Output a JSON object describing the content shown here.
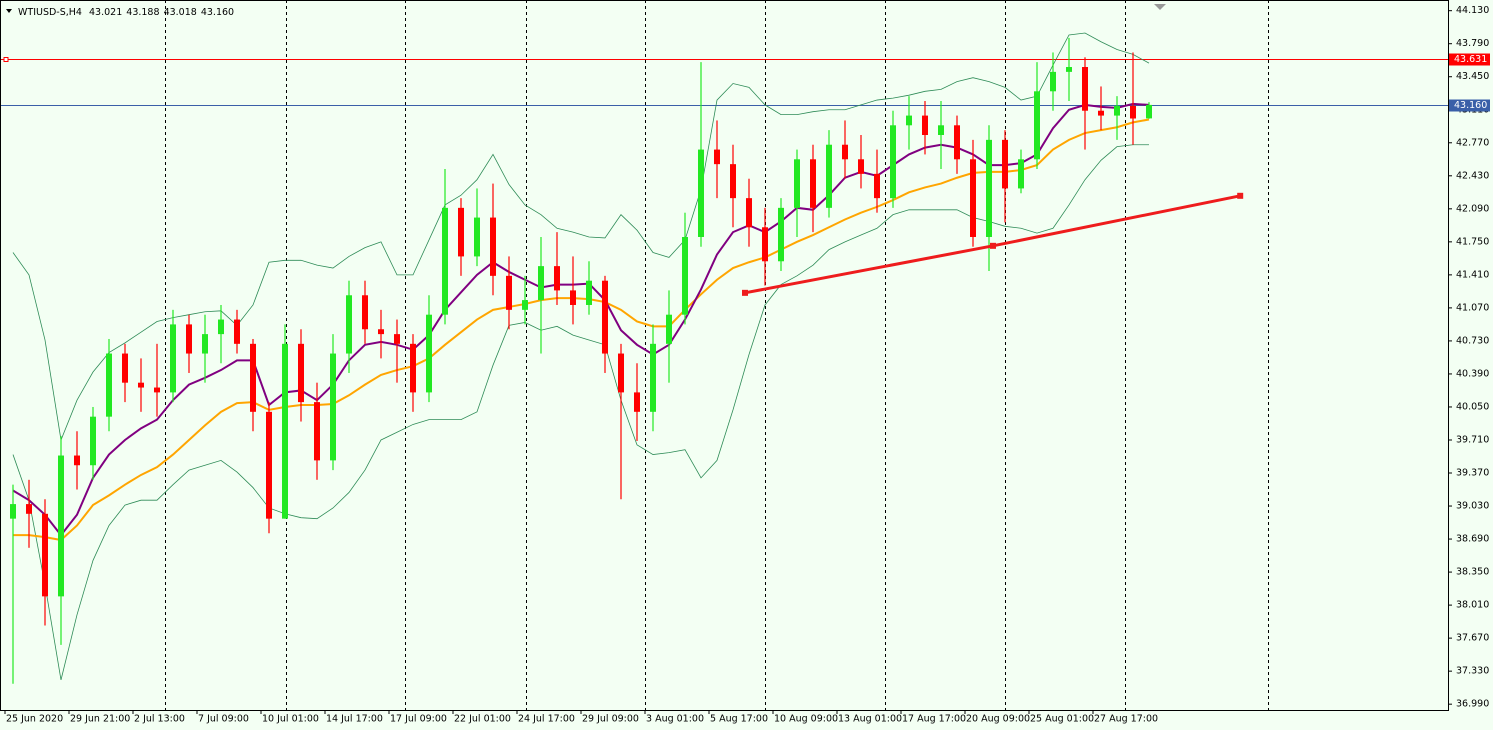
{
  "chart_data": {
    "type": "candlestick",
    "header": {
      "symbol": "WTIUSD-S,H4",
      "values": [
        "43.021",
        "43.188",
        "43.018",
        "43.160"
      ]
    },
    "background": "#f3fff3",
    "up_color": "#22e822",
    "down_color": "#ff0000",
    "categories": [
      "25 Jun 2020",
      null,
      null,
      null,
      "29 Jun 21:00",
      null,
      null,
      null,
      "2 Jul 13:00",
      null,
      null,
      null,
      "7 Jul 09:00",
      null,
      null,
      null,
      "10 Jul 01:00",
      null,
      null,
      null,
      "14 Jul 17:00",
      null,
      null,
      null,
      "17 Jul 09:00",
      null,
      null,
      null,
      "22 Jul 01:00",
      null,
      null,
      null,
      "24 Jul 17:00",
      null,
      null,
      null,
      "29 Jul 09:00",
      null,
      null,
      null,
      "3 Aug 01:00",
      null,
      null,
      null,
      "5 Aug 17:00",
      null,
      null,
      null,
      "10 Aug 09:00",
      null,
      null,
      null,
      "13 Aug 01:00",
      null,
      null,
      null,
      "17 Aug 17:00",
      null,
      null,
      null,
      "20 Aug 09:00",
      null,
      null,
      null,
      "25 Aug 01:00",
      null,
      null,
      null,
      "27 Aug 17:00",
      null,
      null,
      null
    ],
    "open": [
      38.9,
      39.05,
      38.95,
      38.1,
      39.55,
      39.45,
      39.95,
      40.6,
      40.3,
      40.25,
      40.2,
      40.9,
      40.6,
      40.8,
      40.95,
      40.7,
      40.0,
      38.9,
      40.7,
      40.1,
      39.5,
      40.6,
      41.2,
      40.85,
      40.8,
      40.7,
      40.2,
      41.0,
      42.1,
      41.6,
      42.0,
      41.4,
      41.05,
      41.15,
      41.5,
      41.25,
      41.1,
      41.35,
      40.6,
      40.2,
      40.0,
      40.7,
      41.0,
      41.8,
      42.7,
      42.55,
      42.2,
      41.9,
      41.55,
      42.1,
      42.6,
      42.1,
      42.75,
      42.6,
      42.45,
      42.2,
      42.95,
      43.05,
      42.85,
      42.95,
      42.6,
      41.8,
      42.8,
      42.3,
      42.6,
      43.3,
      43.5,
      43.55,
      43.1,
      43.05,
      43.15,
      43.021
    ],
    "high": [
      39.25,
      39.3,
      39.1,
      39.75,
      39.8,
      40.05,
      40.75,
      40.7,
      40.55,
      40.7,
      41.05,
      41.0,
      41.0,
      41.1,
      41.05,
      40.75,
      40.1,
      40.9,
      40.85,
      40.3,
      40.8,
      41.35,
      41.35,
      41.05,
      40.95,
      40.8,
      41.2,
      42.5,
      42.2,
      42.3,
      42.35,
      41.6,
      41.4,
      41.8,
      41.85,
      41.6,
      41.55,
      41.4,
      40.7,
      40.5,
      40.9,
      41.25,
      42.05,
      43.6,
      43.0,
      42.75,
      42.4,
      42.1,
      42.2,
      42.7,
      42.75,
      42.9,
      43.0,
      42.85,
      42.7,
      43.1,
      43.25,
      43.2,
      43.2,
      43.05,
      42.8,
      42.95,
      42.9,
      42.7,
      43.6,
      43.7,
      43.85,
      43.65,
      43.35,
      43.25,
      43.7,
      43.188
    ],
    "low": [
      37.2,
      38.6,
      37.8,
      37.6,
      39.2,
      39.3,
      39.8,
      40.1,
      40.0,
      39.95,
      40.1,
      40.4,
      40.3,
      40.5,
      40.6,
      39.8,
      38.75,
      38.9,
      39.9,
      39.3,
      39.4,
      40.4,
      40.7,
      40.55,
      40.3,
      40.0,
      40.1,
      40.9,
      41.4,
      41.5,
      41.2,
      40.85,
      40.9,
      40.6,
      41.1,
      40.9,
      41.0,
      40.4,
      39.1,
      39.7,
      39.8,
      40.3,
      40.9,
      41.7,
      42.2,
      41.9,
      41.7,
      41.3,
      41.45,
      41.8,
      41.85,
      42.0,
      42.4,
      42.3,
      42.05,
      42.1,
      42.7,
      42.65,
      42.5,
      42.45,
      41.7,
      41.45,
      41.95,
      42.25,
      42.5,
      43.1,
      43.2,
      42.7,
      42.9,
      42.8,
      42.75,
      43.018
    ],
    "close": [
      39.05,
      38.95,
      38.1,
      39.55,
      39.45,
      39.95,
      40.6,
      40.3,
      40.25,
      40.2,
      40.9,
      40.6,
      40.8,
      40.95,
      40.7,
      40.0,
      38.9,
      40.7,
      40.1,
      39.5,
      40.6,
      41.2,
      40.85,
      40.8,
      40.7,
      40.2,
      41.0,
      42.1,
      41.6,
      42.0,
      41.4,
      41.05,
      41.15,
      41.5,
      41.25,
      41.1,
      41.35,
      40.6,
      40.2,
      40.0,
      40.7,
      41.0,
      41.8,
      42.7,
      42.55,
      42.2,
      41.9,
      41.55,
      42.1,
      42.6,
      42.1,
      42.75,
      42.6,
      42.45,
      42.2,
      42.95,
      43.05,
      42.85,
      42.95,
      42.6,
      41.8,
      42.8,
      42.3,
      42.6,
      43.3,
      43.5,
      43.55,
      43.1,
      43.05,
      43.15,
      43.02,
      43.16
    ],
    "lines": [
      {
        "color": "#2e8b57",
        "width": 0.8,
        "values": [
          41.64,
          41.41,
          40.74,
          39.71,
          40.12,
          40.41,
          40.61,
          40.71,
          40.82,
          40.93,
          40.97,
          41.0,
          41.03,
          41.04,
          40.89,
          41.1,
          41.54,
          41.56,
          41.56,
          41.51,
          41.48,
          41.6,
          41.69,
          41.75,
          41.41,
          41.41,
          41.77,
          42.13,
          42.23,
          42.39,
          42.65,
          42.34,
          42.13,
          42.03,
          41.89,
          41.85,
          41.8,
          41.79,
          42.03,
          41.87,
          41.64,
          41.59,
          41.77,
          42.29,
          43.21,
          43.38,
          43.34,
          43.16,
          43.06,
          43.06,
          43.09,
          43.11,
          43.11,
          43.16,
          43.21,
          43.23,
          43.26,
          43.3,
          43.32,
          43.4,
          43.44,
          43.4,
          43.34,
          43.21,
          43.25,
          43.57,
          43.88,
          43.9,
          43.81,
          43.73,
          43.68,
          43.59
        ]
      },
      {
        "color": "#2e8b57",
        "width": 0.8,
        "values": [
          39.56,
          39.09,
          38.22,
          37.24,
          37.91,
          38.47,
          38.83,
          39.04,
          39.09,
          39.09,
          39.25,
          39.4,
          39.45,
          39.5,
          39.38,
          39.22,
          39.01,
          38.95,
          38.91,
          38.9,
          39.01,
          39.17,
          39.4,
          39.71,
          39.79,
          39.87,
          39.92,
          39.92,
          39.92,
          40.0,
          40.48,
          40.89,
          40.92,
          40.84,
          40.88,
          40.79,
          40.74,
          40.69,
          40.12,
          39.66,
          39.56,
          39.58,
          39.61,
          39.32,
          39.5,
          40.02,
          40.59,
          41.1,
          41.31,
          41.4,
          41.51,
          41.67,
          41.75,
          41.82,
          41.89,
          42.03,
          42.08,
          42.08,
          42.08,
          42.08,
          42.0,
          41.96,
          41.91,
          41.89,
          41.84,
          41.89,
          42.13,
          42.39,
          42.59,
          42.73,
          42.75,
          42.75
        ]
      },
      {
        "color": "#ffa500",
        "width": 2,
        "values": [
          38.73,
          38.73,
          38.71,
          38.68,
          38.83,
          39.04,
          39.14,
          39.25,
          39.35,
          39.43,
          39.56,
          39.71,
          39.86,
          40.0,
          40.09,
          40.1,
          40.02,
          40.05,
          40.07,
          40.07,
          40.08,
          40.17,
          40.28,
          40.38,
          40.43,
          40.47,
          40.55,
          40.69,
          40.82,
          40.95,
          41.05,
          41.08,
          41.11,
          41.15,
          41.17,
          41.17,
          41.16,
          41.13,
          41.05,
          40.93,
          40.88,
          40.88,
          41.05,
          41.21,
          41.36,
          41.48,
          41.54,
          41.59,
          41.67,
          41.75,
          41.82,
          41.9,
          41.98,
          42.05,
          42.11,
          42.18,
          42.26,
          42.31,
          42.35,
          42.41,
          42.46,
          42.47,
          42.47,
          42.49,
          42.54,
          42.7,
          42.8,
          42.87,
          42.9,
          42.93,
          42.98,
          43.01
        ]
      },
      {
        "color": "#800080",
        "width": 2,
        "values": [
          39.19,
          39.09,
          38.94,
          38.73,
          38.94,
          39.32,
          39.56,
          39.71,
          39.83,
          39.92,
          40.12,
          40.28,
          40.35,
          40.43,
          40.53,
          40.53,
          40.07,
          40.2,
          40.22,
          40.12,
          40.28,
          40.53,
          40.69,
          40.72,
          40.69,
          40.64,
          40.79,
          41.05,
          41.23,
          41.41,
          41.54,
          41.44,
          41.36,
          41.28,
          41.31,
          41.31,
          41.32,
          41.15,
          40.84,
          40.69,
          40.59,
          40.69,
          40.95,
          41.26,
          41.62,
          41.85,
          41.92,
          41.85,
          41.96,
          42.1,
          42.08,
          42.23,
          42.41,
          42.47,
          42.43,
          42.54,
          42.65,
          42.72,
          42.75,
          42.72,
          42.65,
          42.54,
          42.54,
          42.56,
          42.65,
          42.92,
          43.11,
          43.16,
          43.14,
          43.13,
          43.17,
          43.16
        ]
      }
    ],
    "levels": [
      {
        "value": 43.631,
        "label": "43.631",
        "color": "#ff0000"
      },
      {
        "value": 43.16,
        "label": "43.160",
        "color": "#3a5fa8"
      }
    ],
    "trendline": {
      "color": "#ee1c1c",
      "x": [
        45.75,
        61.25,
        76.7
      ],
      "y": [
        41.225,
        41.709,
        42.224
      ]
    },
    "ylim": [
      36.93,
      44.24
    ],
    "yticks": [
      {
        "value": 44.13,
        "label": "44.130"
      },
      {
        "value": 43.79,
        "label": "43.790"
      },
      {
        "value": 43.45,
        "label": "43.450"
      },
      {
        "value": 43.11,
        "label": "43.110"
      },
      {
        "value": 42.77,
        "label": "42.770"
      },
      {
        "value": 42.43,
        "label": "42.430"
      },
      {
        "value": 42.09,
        "label": "42.090"
      },
      {
        "value": 41.75,
        "label": "41.750"
      },
      {
        "value": 41.41,
        "label": "41.410"
      },
      {
        "value": 41.07,
        "label": "41.070"
      },
      {
        "value": 40.73,
        "label": "40.730"
      },
      {
        "value": 40.39,
        "label": "40.390"
      },
      {
        "value": 40.05,
        "label": "40.050"
      },
      {
        "value": 39.71,
        "label": "39.710"
      },
      {
        "value": 39.37,
        "label": "39.370"
      },
      {
        "value": 39.03,
        "label": "39.030"
      },
      {
        "value": 38.69,
        "label": "38.690"
      },
      {
        "value": 38.35,
        "label": "38.350"
      },
      {
        "value": 38.01,
        "label": "38.010"
      },
      {
        "value": 37.67,
        "label": "37.670"
      },
      {
        "value": 37.33,
        "label": "37.330"
      },
      {
        "value": 36.99,
        "label": "36.990"
      }
    ]
  }
}
